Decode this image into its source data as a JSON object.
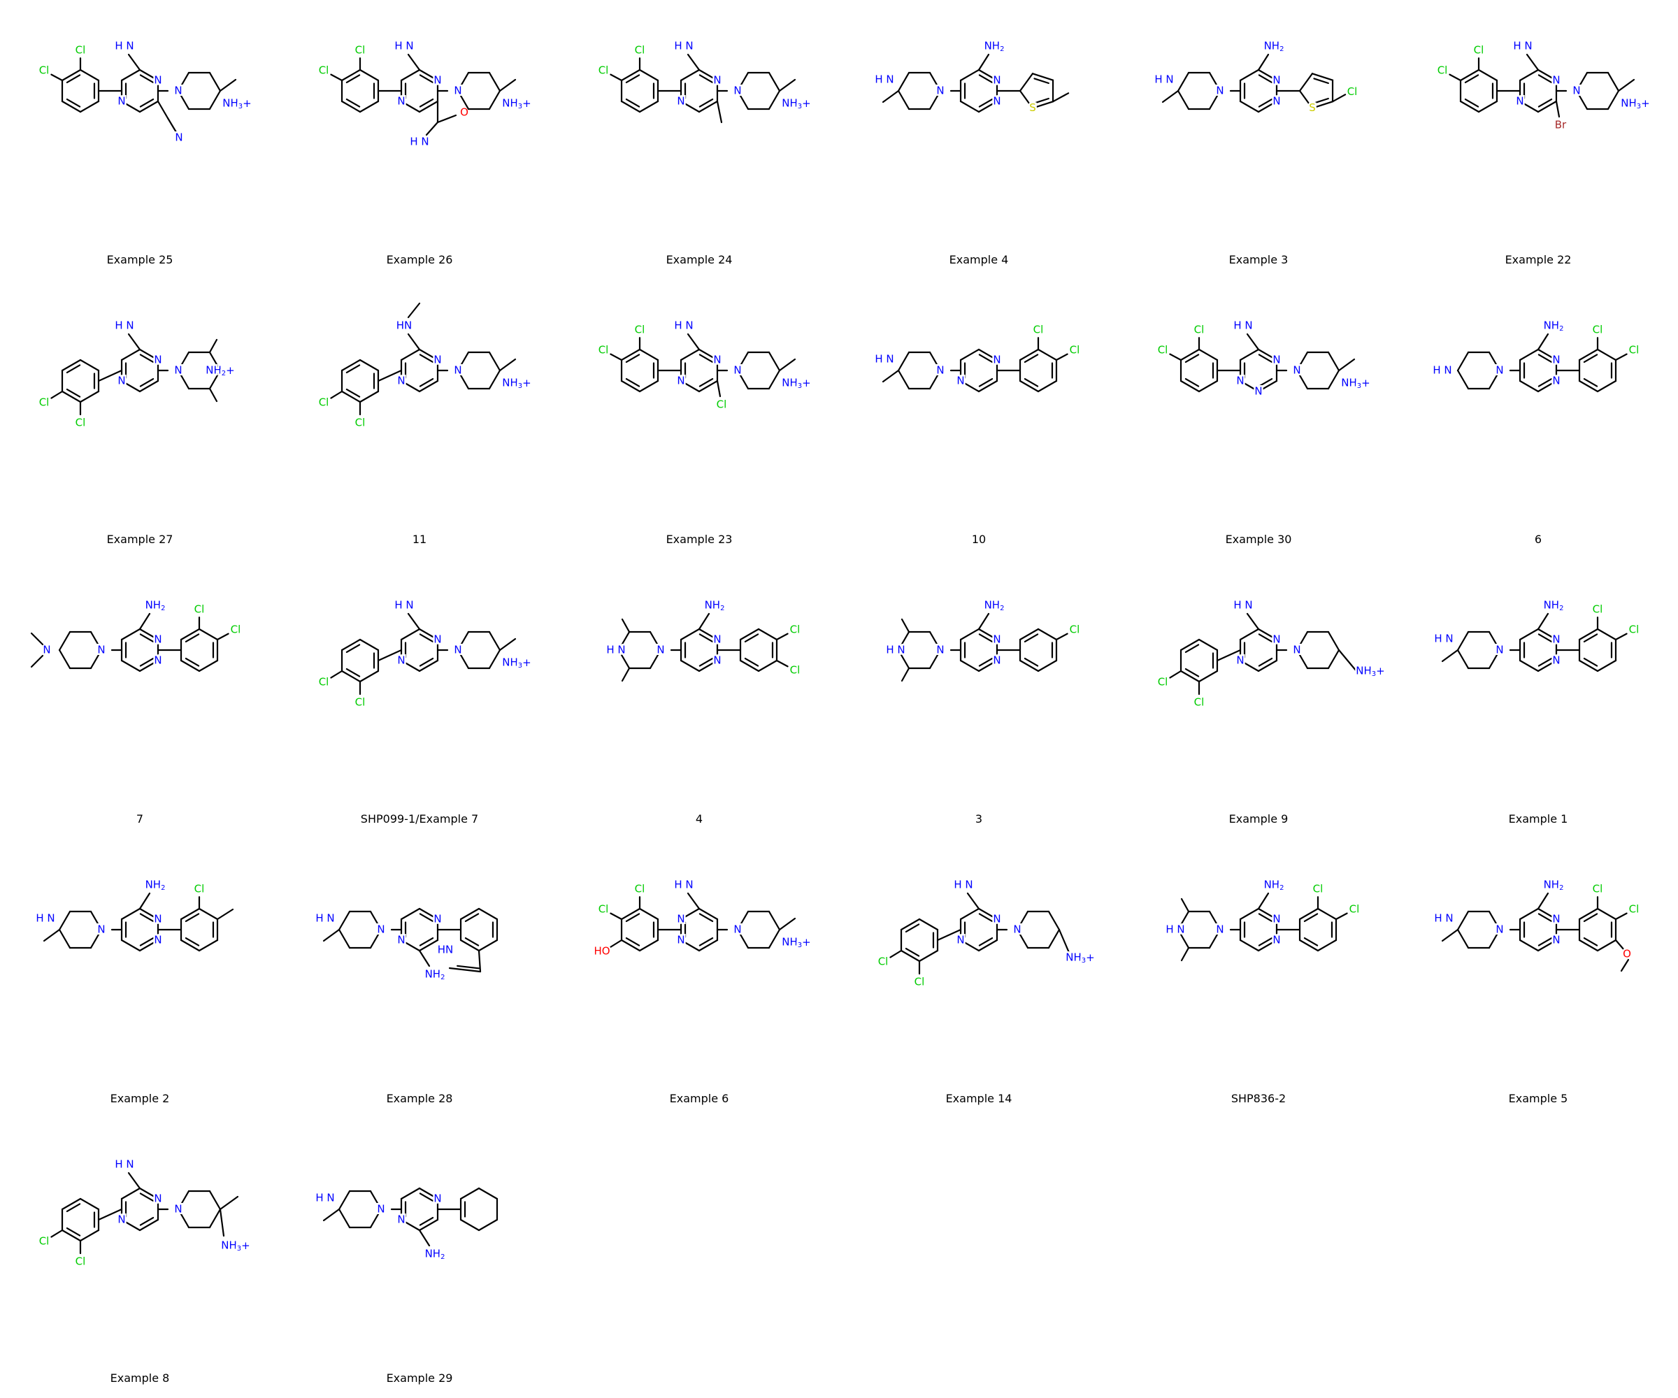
{
  "colors": {
    "bond": "#000000",
    "nitrogen": "#0000ff",
    "chlorine": "#00cc00",
    "oxygen": "#ff0000",
    "sulfur": "#cccc00",
    "bromine": "#a62929"
  },
  "molecules": [
    {
      "caption": "Example 25",
      "core": "pyrazine",
      "amine": "NH2",
      "ring": "dichlorophenyl",
      "sub": "nitrile",
      "tail": "methylpiperidine",
      "layout": "pyrazine_left"
    },
    {
      "caption": "Example 26",
      "core": "pyrazine",
      "amine": "NH2",
      "ring": "dichlorophenyl",
      "sub": "amide",
      "tail": "methylpiperidine",
      "layout": "pyrazine_left"
    },
    {
      "caption": "Example 24",
      "core": "pyrazine",
      "amine": "NH2",
      "ring": "dichlorophenyl",
      "sub": "methyl",
      "tail": "methylpiperidine",
      "layout": "pyrazine_left"
    },
    {
      "caption": "Example 4",
      "core": "pyrimidine",
      "amine": "NH2",
      "ring": "methylthiophene",
      "sub": "",
      "tail": "methylpiperidine",
      "layout": "pyrimidine_right"
    },
    {
      "caption": "Example 3",
      "core": "pyrimidine",
      "amine": "NH2",
      "ring": "chlorothiophene",
      "sub": "",
      "tail": "methylpiperidine",
      "layout": "pyrimidine_right"
    },
    {
      "caption": "Example 22",
      "core": "pyrazine",
      "amine": "NH2",
      "ring": "dichlorophenyl",
      "sub": "bromo",
      "tail": "methylpiperidine",
      "layout": "pyrazine_left"
    },
    {
      "caption": "Example 27",
      "core": "pyrazine",
      "amine": "NH2",
      "ring": "dichlorophenyl_low",
      "sub": "",
      "tail": "dimethylpiperazine",
      "layout": "pyrazine_left_low"
    },
    {
      "caption": "11",
      "core": "pyrazine",
      "amine": "NHMe",
      "ring": "dichlorophenyl_low",
      "sub": "",
      "tail": "methylpiperidine",
      "layout": "pyrazine_left_low"
    },
    {
      "caption": "Example 23",
      "core": "pyrazine",
      "amine": "NH2",
      "ring": "dichlorophenyl",
      "sub": "chloro",
      "tail": "methylpiperidine",
      "layout": "pyrazine_left"
    },
    {
      "caption": "10",
      "core": "pyrazine",
      "amine": "",
      "ring": "dichlorophenyl_right",
      "sub": "",
      "tail": "methylpiperidine",
      "layout": "pyrazine_right"
    },
    {
      "caption": "Example 30",
      "core": "triazine",
      "amine": "NH2",
      "ring": "dichlorophenyl",
      "sub": "",
      "tail": "methylpiperidine",
      "layout": "pyrazine_left"
    },
    {
      "caption": "6",
      "core": "pyrimidine",
      "amine": "NH2",
      "ring": "dichlorophenyl_right",
      "sub": "",
      "tail": "piperidine",
      "layout": "pyrimidine_right"
    },
    {
      "caption": "7",
      "core": "pyrimidine",
      "amine": "NH2",
      "ring": "dichlorophenyl_right",
      "sub": "",
      "tail": "dimethylaminopiperidine",
      "layout": "pyrimidine_right"
    },
    {
      "caption": "SHP099-1/Example 7",
      "core": "pyrazine",
      "amine": "NH2",
      "ring": "dichlorophenyl_low",
      "sub": "",
      "tail": "methylpiperidine",
      "layout": "pyrazine_left_low"
    },
    {
      "caption": "4",
      "core": "pyrimidine",
      "amine": "NH2",
      "ring": "dichlorophenyl_para",
      "sub": "",
      "tail": "dimethylpiperazine",
      "layout": "pyrimidine_right"
    },
    {
      "caption": "3",
      "core": "pyrimidine",
      "amine": "NH2",
      "ring": "chlorophenyl_meta",
      "sub": "",
      "tail": "dimethylpiperazine",
      "layout": "pyrimidine_right"
    },
    {
      "caption": "Example 9",
      "core": "pyrazine",
      "amine": "NH2",
      "ring": "dichlorophenyl_low",
      "sub": "",
      "tail": "aminomethylpiperidine",
      "layout": "pyrazine_left_low"
    },
    {
      "caption": "Example 1",
      "core": "pyrimidine",
      "amine": "NH2",
      "ring": "dichlorophenyl_right",
      "sub": "",
      "tail": "methylpiperidine",
      "layout": "pyrimidine_right"
    },
    {
      "caption": "Example 2",
      "core": "pyrimidine",
      "amine": "NH2",
      "ring": "chloromethylphenyl",
      "sub": "",
      "tail": "methylpiperidine",
      "layout": "pyrimidine_right"
    },
    {
      "caption": "Example 28",
      "core": "pyrazine",
      "amine": "NH2",
      "ring": "indole",
      "sub": "",
      "tail": "methylpiperidine",
      "layout": "pyrazine_right"
    },
    {
      "caption": "Example 6",
      "core": "pyrimidine",
      "amine": "NH2",
      "ring": "dichlorohydroxyphenyl",
      "sub": "",
      "tail": "methylpiperidine",
      "layout": "pyrimidine_left"
    },
    {
      "caption": "Example 14",
      "core": "pyrazine",
      "amine": "NH2",
      "ring": "dichlorophenyl_low",
      "sub": "",
      "tail": "aminomethylpyrrolidine",
      "layout": "pyrazine_left_low"
    },
    {
      "caption": "SHP836-2",
      "core": "pyrimidine",
      "amine": "NH2",
      "ring": "dichlorophenyl_right",
      "sub": "",
      "tail": "dimethylpiperazine",
      "layout": "pyrimidine_right"
    },
    {
      "caption": "Example 5",
      "core": "pyrimidine",
      "amine": "NH2",
      "ring": "dichloromethoxyphenyl",
      "sub": "",
      "tail": "methylpiperidine",
      "layout": "pyrimidine_right"
    },
    {
      "caption": "Example 8",
      "core": "pyrazine",
      "amine": "NH2",
      "ring": "dichlorophenyl_low",
      "sub": "",
      "tail": "methylaminomethylpiperidine",
      "layout": "pyrazine_left_low"
    },
    {
      "caption": "Example 29",
      "core": "pyrazine",
      "amine": "NH2",
      "ring": "cyclohexenyl",
      "sub": "",
      "tail": "methylpiperidine",
      "layout": "pyrazine_right"
    }
  ],
  "labels": {
    "N": "N",
    "NH2": "NH",
    "NH3": "NH",
    "H3N": "H N",
    "H2N": "H N",
    "NH": "NH",
    "HN": "HN",
    "Cl": "Cl",
    "Br": "Br",
    "O": "O",
    "HO": "HO",
    "S": "S",
    "H": "H"
  }
}
